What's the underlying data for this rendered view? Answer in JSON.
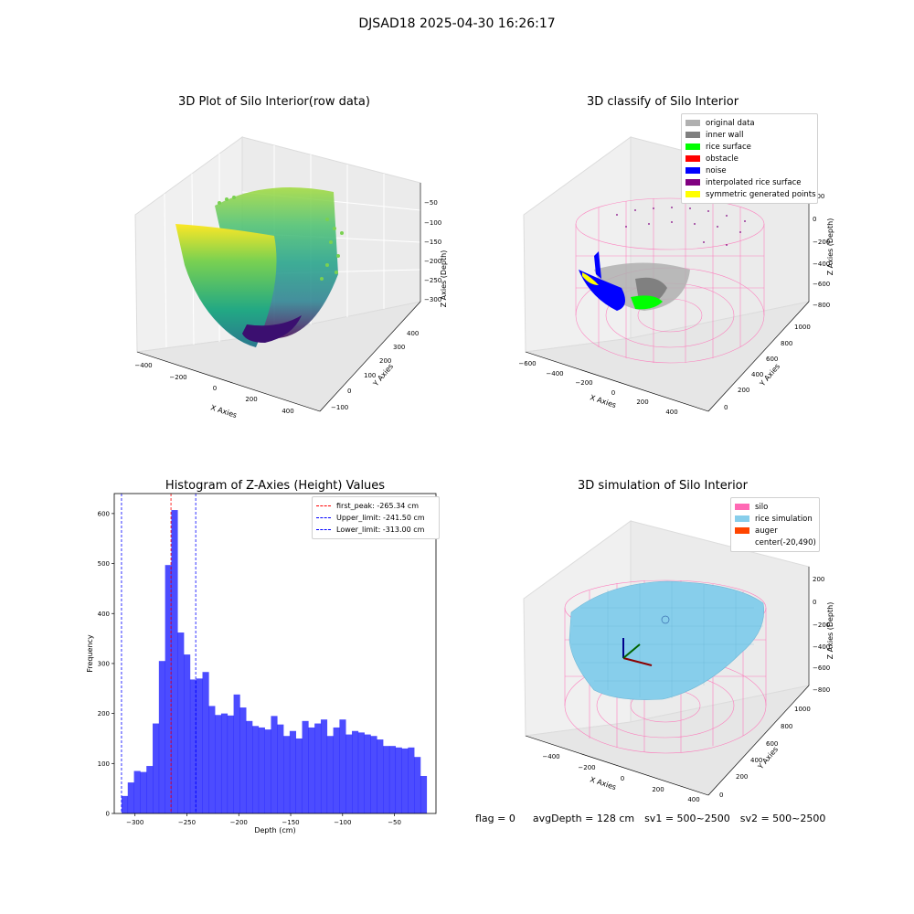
{
  "suptitle": "DJSAD18 2025-04-30 16:26:17",
  "footer": {
    "flag": "flag = 0",
    "avg_depth": "avgDepth = 128 cm",
    "sv1": "sv1 = 500~2500",
    "sv2": "sv2 = 500~2500"
  },
  "panels": {
    "raw": {
      "title": "3D Plot of Silo Interior(row data)",
      "xlabel": "X Axies",
      "ylabel": "Y Axies",
      "zlabel": "Z Axies (Depth)",
      "xticks": [
        "−400",
        "−200",
        "0",
        "200",
        "400"
      ],
      "yticks": [
        "−100",
        "0",
        "100",
        "200",
        "300",
        "400"
      ],
      "zticks": [
        "−50",
        "−100",
        "−150",
        "−200",
        "−250",
        "−300"
      ]
    },
    "classify": {
      "title": "3D classify of Silo Interior",
      "xlabel": "X Axies",
      "ylabel": "Y Axies",
      "zlabel": "Z Axies (Depth)",
      "xticks": [
        "−600",
        "−400",
        "−200",
        "0",
        "200",
        "400"
      ],
      "yticks": [
        "0",
        "200",
        "400",
        "600",
        "800",
        "1000"
      ],
      "zticks": [
        "200",
        "0",
        "−200",
        "−400",
        "−600",
        "−800"
      ],
      "legend": [
        {
          "label": "original data",
          "color": "#b0b0b0"
        },
        {
          "label": "inner wall",
          "color": "#808080"
        },
        {
          "label": "rice surface",
          "color": "#00ff00"
        },
        {
          "label": "obstacle",
          "color": "#ff0000"
        },
        {
          "label": "noise",
          "color": "#0000ff"
        },
        {
          "label": "interpolated rice surface",
          "color": "#800080"
        },
        {
          "label": "symmetric generated points",
          "color": "#ffff00"
        }
      ]
    },
    "simulation": {
      "title": "3D simulation of Silo Interior",
      "xlabel": "X Axies",
      "ylabel": "Y Axies",
      "zlabel": "Z Axies (Depth)",
      "xticks": [
        "−400",
        "−200",
        "0",
        "200",
        "400"
      ],
      "yticks": [
        "0",
        "200",
        "400",
        "600",
        "800",
        "1000"
      ],
      "zticks": [
        "200",
        "0",
        "−200",
        "−400",
        "−600",
        "−800"
      ],
      "legend": [
        {
          "label": "silo",
          "color": "#ff69b4"
        },
        {
          "label": "rice simulation",
          "color": "#87ceeb"
        },
        {
          "label": "auger",
          "color": "#ff4500"
        },
        {
          "label": "center(-20,490)",
          "color": ""
        }
      ]
    }
  },
  "chart_data": {
    "type": "bar",
    "title": "Histogram of Z-Axies (Height) Values",
    "xlabel": "Depth (cm)",
    "ylabel": "Frequency",
    "xlim": [
      -320,
      -10
    ],
    "ylim": [
      0,
      640
    ],
    "xticks": [
      -300,
      -250,
      -200,
      -150,
      -100,
      -50
    ],
    "yticks": [
      0,
      100,
      200,
      300,
      400,
      500,
      600
    ],
    "bar_color": "#0000ff",
    "bin_start": -313,
    "bin_width": 6,
    "values": [
      35,
      62,
      85,
      83,
      95,
      180,
      305,
      497,
      607,
      362,
      318,
      268,
      270,
      283,
      215,
      197,
      200,
      196,
      238,
      212,
      185,
      175,
      172,
      168,
      195,
      178,
      155,
      165,
      150,
      185,
      172,
      180,
      188,
      155,
      172,
      188,
      158,
      165,
      162,
      158,
      155,
      148,
      135,
      135,
      132,
      130,
      132,
      113,
      75
    ],
    "vlines": [
      {
        "label": "first_peak: -265.34 cm",
        "x": -265.34,
        "color": "#ff0000"
      },
      {
        "label": "Upper_limit: -241.50 cm",
        "x": -241.5,
        "color": "#0000ff"
      },
      {
        "label": "Lower_limit: -313.00 cm",
        "x": -313.0,
        "color": "#0000ff"
      }
    ],
    "legend_position": "upper-right"
  }
}
